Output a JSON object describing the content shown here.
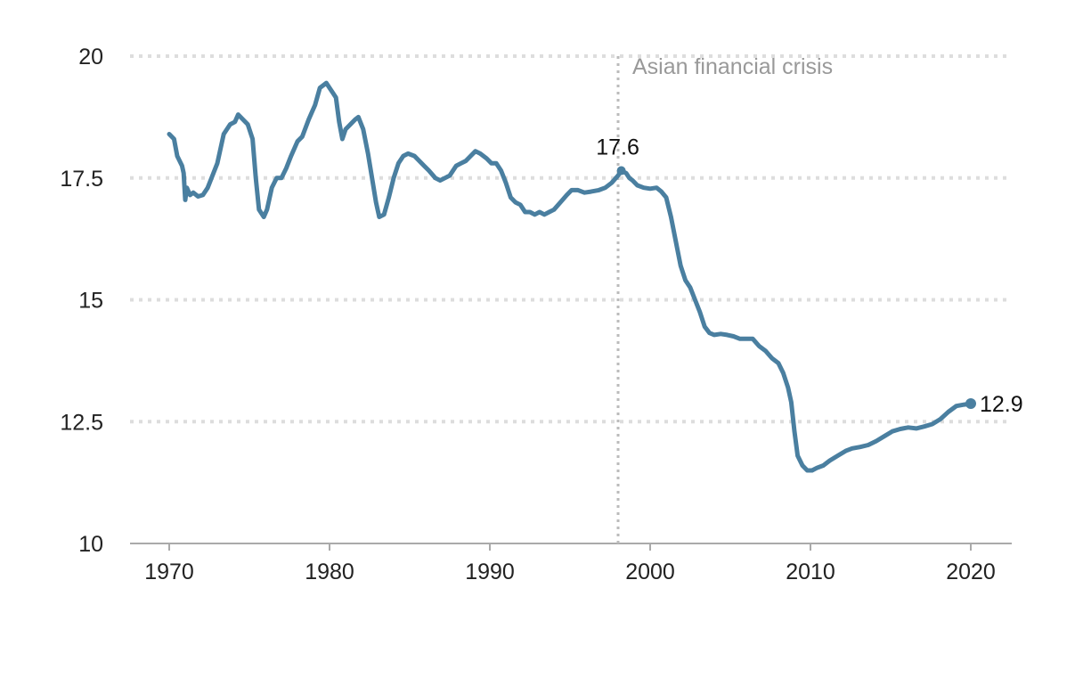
{
  "chart_data": {
    "type": "line",
    "title": "",
    "xlabel": "",
    "ylabel": "",
    "xlim": [
      1967.5,
      2022.5
    ],
    "ylim": [
      10,
      20
    ],
    "x_ticks": [
      "1970",
      "1980",
      "1990",
      "2000",
      "2010",
      "2020"
    ],
    "y_ticks": [
      "10",
      "12.5",
      "15",
      "17.5",
      "20"
    ],
    "grid": "horizontal dotted",
    "line_color": "#4a7fa0",
    "series": [
      {
        "points": [
          [
            1970.0,
            18.4
          ],
          [
            1970.3,
            18.3
          ],
          [
            1970.5,
            17.95
          ],
          [
            1970.8,
            17.75
          ],
          [
            1970.9,
            17.6
          ],
          [
            1971.0,
            17.05
          ],
          [
            1971.1,
            17.3
          ],
          [
            1971.3,
            17.15
          ],
          [
            1971.5,
            17.2
          ],
          [
            1971.8,
            17.12
          ],
          [
            1972.1,
            17.15
          ],
          [
            1972.4,
            17.3
          ],
          [
            1972.7,
            17.55
          ],
          [
            1973.0,
            17.8
          ],
          [
            1973.4,
            18.4
          ],
          [
            1973.8,
            18.6
          ],
          [
            1974.1,
            18.65
          ],
          [
            1974.3,
            18.8
          ],
          [
            1974.6,
            18.7
          ],
          [
            1974.9,
            18.6
          ],
          [
            1975.2,
            18.3
          ],
          [
            1975.4,
            17.5
          ],
          [
            1975.6,
            16.85
          ],
          [
            1975.9,
            16.7
          ],
          [
            1976.1,
            16.85
          ],
          [
            1976.4,
            17.3
          ],
          [
            1976.7,
            17.5
          ],
          [
            1977.0,
            17.5
          ],
          [
            1977.3,
            17.7
          ],
          [
            1977.6,
            17.95
          ],
          [
            1978.0,
            18.25
          ],
          [
            1978.3,
            18.35
          ],
          [
            1978.7,
            18.7
          ],
          [
            1979.1,
            19.0
          ],
          [
            1979.4,
            19.35
          ],
          [
            1979.8,
            19.45
          ],
          [
            1980.0,
            19.35
          ],
          [
            1980.2,
            19.25
          ],
          [
            1980.4,
            19.15
          ],
          [
            1980.6,
            18.65
          ],
          [
            1980.8,
            18.3
          ],
          [
            1981.0,
            18.5
          ],
          [
            1981.3,
            18.6
          ],
          [
            1981.6,
            18.7
          ],
          [
            1981.8,
            18.75
          ],
          [
            1982.1,
            18.5
          ],
          [
            1982.4,
            18.0
          ],
          [
            1982.7,
            17.4
          ],
          [
            1982.9,
            17.0
          ],
          [
            1983.1,
            16.7
          ],
          [
            1983.4,
            16.75
          ],
          [
            1983.7,
            17.1
          ],
          [
            1984.0,
            17.5
          ],
          [
            1984.3,
            17.8
          ],
          [
            1984.6,
            17.95
          ],
          [
            1984.9,
            18.0
          ],
          [
            1985.3,
            17.95
          ],
          [
            1985.6,
            17.85
          ],
          [
            1985.9,
            17.75
          ],
          [
            1986.2,
            17.65
          ],
          [
            1986.6,
            17.5
          ],
          [
            1986.9,
            17.45
          ],
          [
            1987.2,
            17.5
          ],
          [
            1987.5,
            17.55
          ],
          [
            1987.9,
            17.75
          ],
          [
            1988.2,
            17.8
          ],
          [
            1988.5,
            17.85
          ],
          [
            1988.8,
            17.95
          ],
          [
            1989.1,
            18.05
          ],
          [
            1989.4,
            18.0
          ],
          [
            1989.8,
            17.9
          ],
          [
            1990.1,
            17.8
          ],
          [
            1990.4,
            17.8
          ],
          [
            1990.7,
            17.65
          ],
          [
            1991.0,
            17.4
          ],
          [
            1991.3,
            17.1
          ],
          [
            1991.6,
            17.0
          ],
          [
            1991.9,
            16.95
          ],
          [
            1992.2,
            16.8
          ],
          [
            1992.5,
            16.8
          ],
          [
            1992.8,
            16.75
          ],
          [
            1993.1,
            16.8
          ],
          [
            1993.4,
            16.75
          ],
          [
            1993.7,
            16.8
          ],
          [
            1994.0,
            16.85
          ],
          [
            1994.4,
            17.0
          ],
          [
            1994.8,
            17.15
          ],
          [
            1995.1,
            17.25
          ],
          [
            1995.5,
            17.25
          ],
          [
            1995.9,
            17.2
          ],
          [
            1996.3,
            17.22
          ],
          [
            1996.8,
            17.25
          ],
          [
            1997.2,
            17.3
          ],
          [
            1997.6,
            17.4
          ],
          [
            1998.0,
            17.55
          ],
          [
            1998.2,
            17.65
          ],
          [
            1998.5,
            17.6
          ],
          [
            1998.7,
            17.5
          ],
          [
            1998.9,
            17.45
          ],
          [
            1999.2,
            17.35
          ],
          [
            1999.6,
            17.3
          ],
          [
            2000.0,
            17.28
          ],
          [
            2000.4,
            17.3
          ],
          [
            2000.7,
            17.22
          ],
          [
            2001.0,
            17.1
          ],
          [
            2001.3,
            16.7
          ],
          [
            2001.6,
            16.2
          ],
          [
            2001.9,
            15.7
          ],
          [
            2002.2,
            15.4
          ],
          [
            2002.5,
            15.25
          ],
          [
            2002.8,
            15.0
          ],
          [
            2003.1,
            14.75
          ],
          [
            2003.4,
            14.45
          ],
          [
            2003.7,
            14.32
          ],
          [
            2004.0,
            14.28
          ],
          [
            2004.4,
            14.3
          ],
          [
            2004.8,
            14.28
          ],
          [
            2005.2,
            14.25
          ],
          [
            2005.6,
            14.2
          ],
          [
            2006.0,
            14.2
          ],
          [
            2006.4,
            14.2
          ],
          [
            2006.8,
            14.05
          ],
          [
            2007.2,
            13.95
          ],
          [
            2007.6,
            13.8
          ],
          [
            2008.0,
            13.7
          ],
          [
            2008.3,
            13.5
          ],
          [
            2008.6,
            13.2
          ],
          [
            2008.8,
            12.9
          ],
          [
            2009.0,
            12.3
          ],
          [
            2009.2,
            11.8
          ],
          [
            2009.5,
            11.6
          ],
          [
            2009.8,
            11.5
          ],
          [
            2010.1,
            11.5
          ],
          [
            2010.4,
            11.55
          ],
          [
            2010.8,
            11.6
          ],
          [
            2011.2,
            11.7
          ],
          [
            2011.7,
            11.8
          ],
          [
            2012.2,
            11.9
          ],
          [
            2012.6,
            11.95
          ],
          [
            2013.1,
            11.98
          ],
          [
            2013.6,
            12.02
          ],
          [
            2014.1,
            12.1
          ],
          [
            2014.6,
            12.2
          ],
          [
            2015.1,
            12.3
          ],
          [
            2015.6,
            12.35
          ],
          [
            2016.1,
            12.38
          ],
          [
            2016.6,
            12.36
          ],
          [
            2017.1,
            12.4
          ],
          [
            2017.6,
            12.45
          ],
          [
            2018.1,
            12.55
          ],
          [
            2018.6,
            12.7
          ],
          [
            2019.1,
            12.82
          ],
          [
            2019.6,
            12.85
          ],
          [
            2020.0,
            12.87
          ]
        ]
      }
    ],
    "annotations": [
      {
        "text": "Asian financial crisis",
        "x": 1998.0,
        "type": "vertical-line"
      },
      {
        "text": "17.6",
        "x": 1998.2,
        "y": 17.65,
        "type": "peak-label"
      },
      {
        "text": "12.9",
        "x": 2020.0,
        "y": 12.87,
        "type": "end-label"
      }
    ]
  }
}
